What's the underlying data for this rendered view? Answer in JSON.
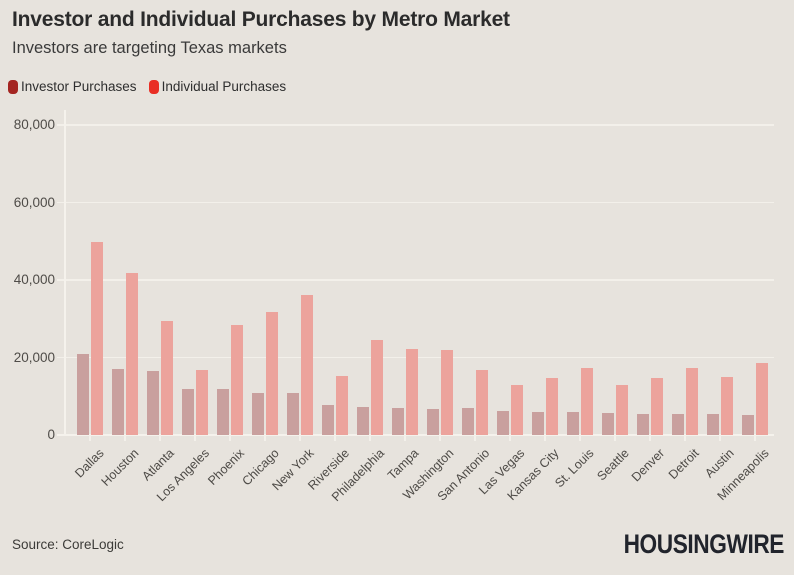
{
  "header": {
    "title": "Investor and Individual Purchases by Metro Market",
    "subtitle": "Investors are targeting Texas markets"
  },
  "legend": [
    {
      "label": "Investor Purchases",
      "swatch_color": "#A42521"
    },
    {
      "label": "Individual Purchases",
      "swatch_color": "#E92E24"
    }
  ],
  "footer": {
    "source": "Source: CoreLogic",
    "brand": "HOUSINGWIRE"
  },
  "colors": {
    "background": "#E7E3DD",
    "grid": "#F3F0EA",
    "axis_text": "#4F4C48",
    "investor_bar": "#C9A09E",
    "individual_bar": "#ECA39C"
  },
  "chart_data": {
    "type": "bar",
    "title": "Investor and Individual Purchases by Metro Market",
    "subtitle": "Investors are targeting Texas markets",
    "categories": [
      "Dallas",
      "Houston",
      "Atlanta",
      "Los Angeles",
      "Phoenix",
      "Chicago",
      "New York",
      "Riverside",
      "Philadelphia",
      "Tampa",
      "Washington",
      "San Antonio",
      "Las Vegas",
      "Kansas City",
      "St. Louis",
      "Seattle",
      "Denver",
      "Detroit",
      "Austin",
      "Minneapolis"
    ],
    "series": [
      {
        "name": "Investor Purchases",
        "color": "#C9A09E",
        "legend_color": "#A42521",
        "values": [
          21000,
          17100,
          16400,
          11900,
          11800,
          10900,
          10800,
          7700,
          7300,
          6900,
          6800,
          6900,
          6100,
          6000,
          5900,
          5600,
          5500,
          5400,
          5300,
          5200
        ]
      },
      {
        "name": "Individual Purchases",
        "color": "#ECA39C",
        "legend_color": "#E92E24",
        "values": [
          49700,
          41700,
          29400,
          16700,
          28300,
          31700,
          36100,
          15200,
          24500,
          22100,
          21900,
          16900,
          13000,
          14700,
          17400,
          12800,
          14700,
          17300,
          15100,
          18500
        ]
      }
    ],
    "xlabel": "",
    "ylabel": "",
    "ylim": [
      0,
      80000
    ],
    "yticks": [
      0,
      20000,
      40000,
      60000,
      80000
    ],
    "ytick_labels": [
      "0",
      "20,000",
      "40,000",
      "60,000",
      "80,000"
    ],
    "grid": true,
    "legend_position": "top-left",
    "xtick_rotation_deg": 45
  }
}
